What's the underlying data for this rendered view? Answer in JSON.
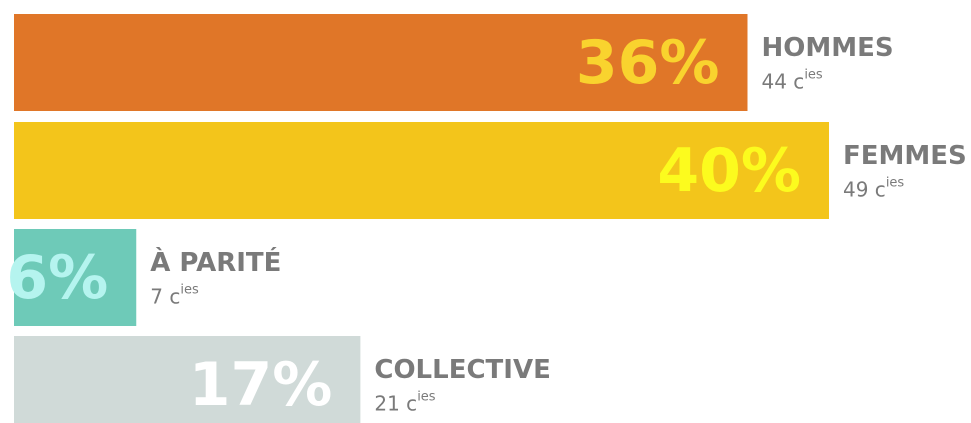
{
  "chart_data": {
    "type": "bar",
    "orientation": "horizontal",
    "categories": [
      "HOMMES",
      "FEMMES",
      "À PARITÉ",
      "COLLECTIVE"
    ],
    "values": [
      36,
      40,
      6,
      17
    ],
    "value_labels": [
      "36%",
      "40%",
      "6%",
      "17%"
    ],
    "count_labels": [
      "44 c",
      "49 c",
      "7 c",
      "21 c"
    ],
    "count_label_sup": "ies",
    "colors": [
      "#e07628",
      "#f3c51b",
      "#6ecab8",
      "#d0dad8"
    ],
    "value_label_colors": [
      "#f9d32e",
      "#fcfb1e",
      "#b5f4ef",
      "#ffffff"
    ]
  }
}
